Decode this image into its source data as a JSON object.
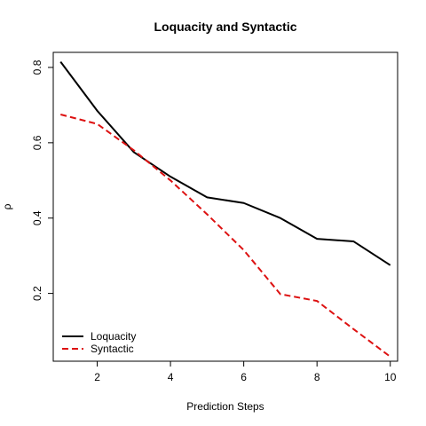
{
  "chart_data": {
    "type": "line",
    "title": "Loquacity and Syntactic",
    "xlabel": "Prediction Steps",
    "ylabel": "ρ",
    "x": [
      1,
      2,
      3,
      4,
      5,
      6,
      7,
      8,
      9,
      10
    ],
    "xlim": [
      0.8,
      10.2
    ],
    "ylim": [
      0.02,
      0.84
    ],
    "xticks": [
      2,
      4,
      6,
      8,
      10
    ],
    "yticks": [
      0.2,
      0.4,
      0.6,
      0.8
    ],
    "grid": false,
    "legend_position": "bottom-left",
    "series": [
      {
        "name": "Loquacity",
        "values": [
          0.815,
          0.685,
          0.575,
          0.51,
          0.455,
          0.44,
          0.4,
          0.345,
          0.338,
          0.275
        ],
        "color": "#000000",
        "dash": "solid"
      },
      {
        "name": "Syntactic",
        "values": [
          0.675,
          0.65,
          0.58,
          0.5,
          0.41,
          0.315,
          0.198,
          0.18,
          0.105,
          0.032
        ],
        "color": "#dd1111",
        "dash": "dashed"
      }
    ]
  }
}
